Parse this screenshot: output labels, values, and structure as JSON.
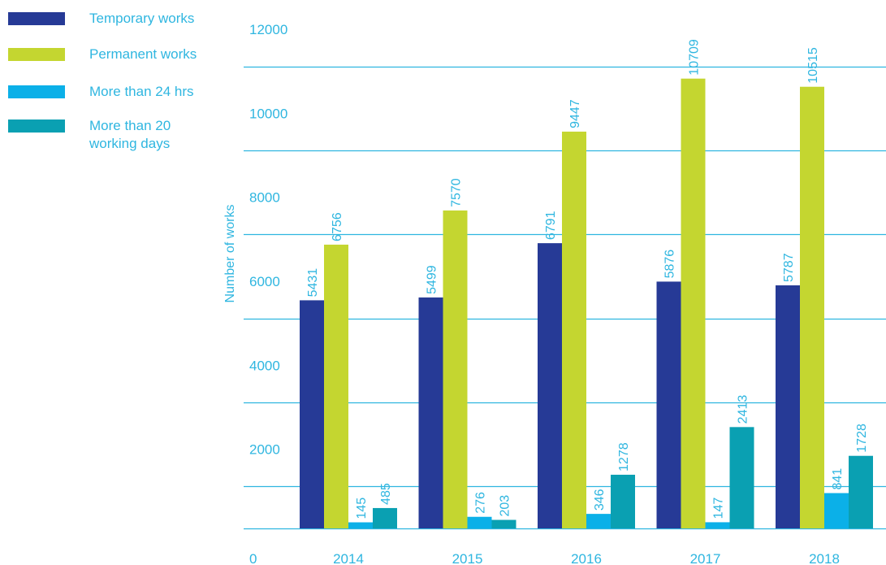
{
  "colors": {
    "text": "#2fb6e0",
    "grid": "#2fb6e0",
    "series": [
      "#263a96",
      "#c4d630",
      "#0bb0e8",
      "#0aa0b2"
    ]
  },
  "chart_data": {
    "type": "bar",
    "categories": [
      "2014",
      "2015",
      "2016",
      "2017",
      "2018"
    ],
    "series": [
      {
        "name": "Temporary works",
        "values": [
          5431,
          5499,
          6791,
          5876,
          5787
        ]
      },
      {
        "name": "Permanent works",
        "values": [
          6756,
          7570,
          9447,
          10709,
          10515
        ]
      },
      {
        "name": "More than 24 hrs",
        "values": [
          145,
          276,
          346,
          147,
          841
        ]
      },
      {
        "name": "More than 20 working days",
        "values": [
          485,
          203,
          1278,
          2413,
          1728
        ]
      }
    ],
    "ylabel": "Number of works",
    "xlabel": "",
    "ylim": [
      0,
      12000
    ],
    "yticks": [
      0,
      2000,
      4000,
      6000,
      8000,
      10000,
      12000
    ],
    "legend_position": "top-left",
    "grid": true
  },
  "legend": {
    "items": [
      {
        "lines": [
          "Temporary works"
        ]
      },
      {
        "lines": [
          "Permanent works"
        ]
      },
      {
        "lines": [
          "More than 24 hrs"
        ]
      },
      {
        "lines": [
          "More than 20",
          "working days"
        ]
      }
    ]
  }
}
